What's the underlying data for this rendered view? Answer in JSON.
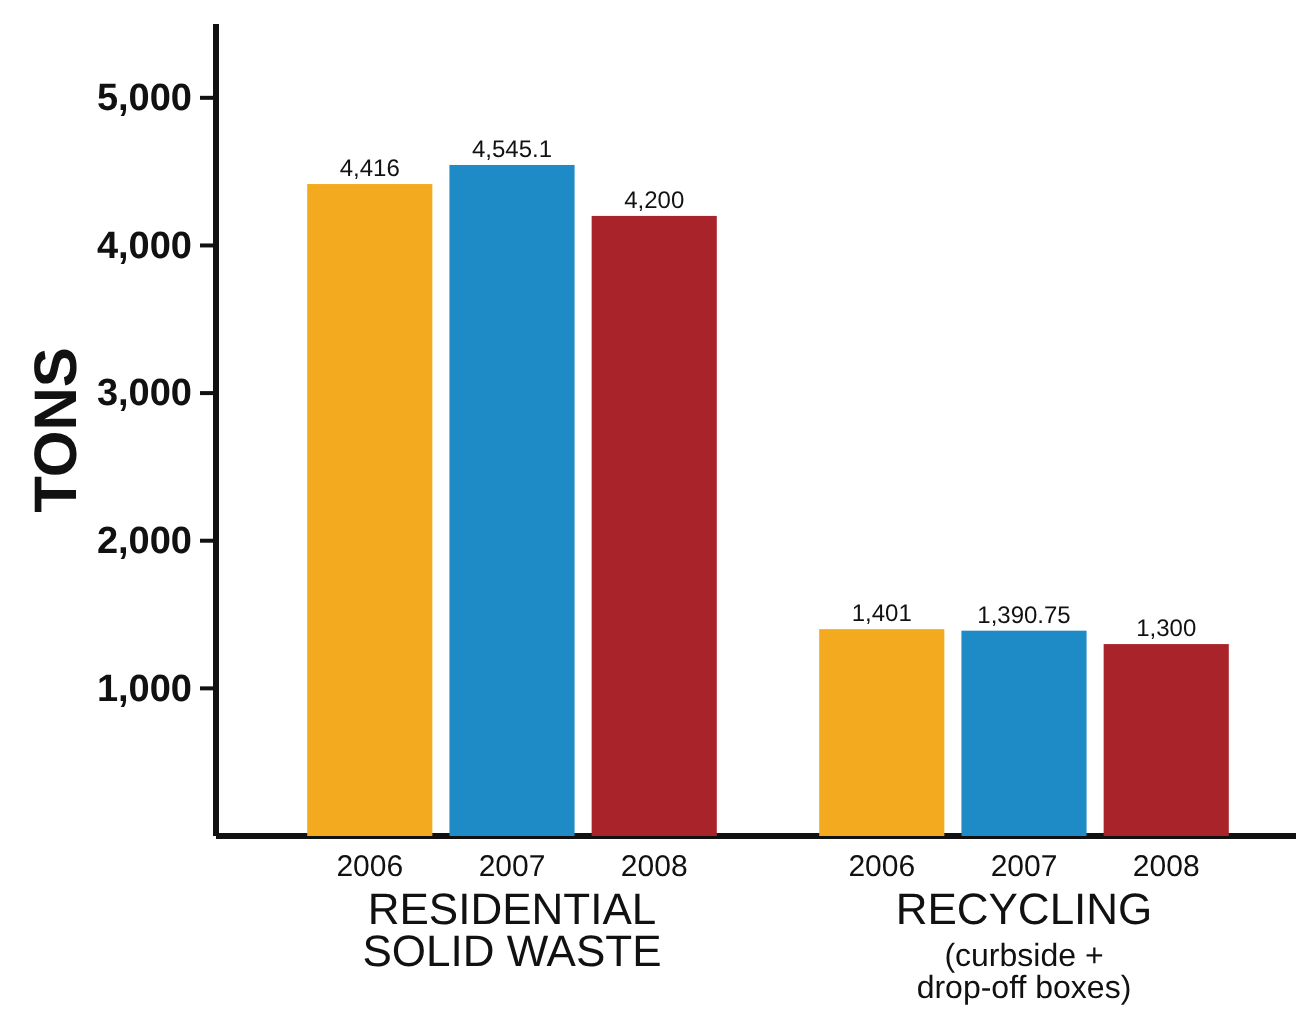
{
  "chart_data": {
    "type": "bar",
    "ylabel": "TONS",
    "categories": [
      "RESIDENTIAL\nSOLID WASTE",
      "RECYCLING\n(curbside +\ndrop-off boxes)"
    ],
    "series": [
      {
        "name": "2006",
        "color": "#f4aa1f",
        "values": [
          4416,
          1401
        ],
        "value_labels": [
          "4,416",
          "1,401"
        ]
      },
      {
        "name": "2007",
        "color": "#1f8bc6",
        "values": [
          4545.1,
          1390.75
        ],
        "value_labels": [
          "4,545.1",
          "1,390.75"
        ]
      },
      {
        "name": "2008",
        "color": "#a8232a",
        "values": [
          4200,
          1300
        ],
        "value_labels": [
          "4,200",
          "1,300"
        ]
      }
    ],
    "ylim": [
      0,
      5500
    ],
    "yticks": [
      {
        "value": 1000,
        "label": "1,000"
      },
      {
        "value": 2000,
        "label": "2,000"
      },
      {
        "value": 3000,
        "label": "3,000"
      },
      {
        "value": 4000,
        "label": "4,000"
      },
      {
        "value": 5000,
        "label": "5,000"
      }
    ],
    "grid": false,
    "legend": false
  }
}
